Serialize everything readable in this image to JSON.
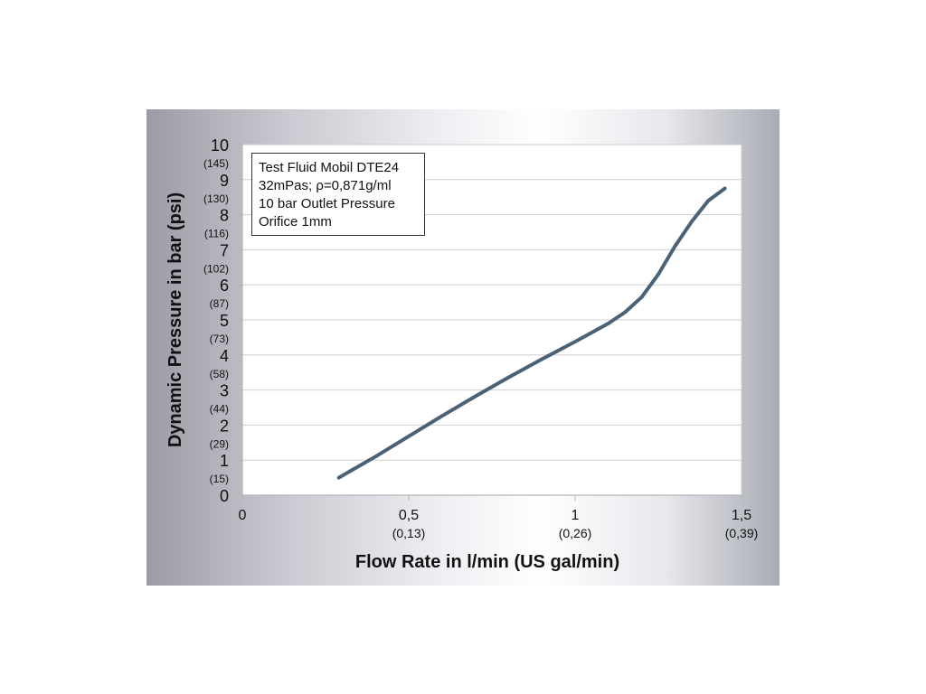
{
  "chart_data": {
    "type": "line",
    "title": "",
    "xlabel": "Flow Rate in l/min (US gal/min)",
    "ylabel": "Dynamic Pressure in bar (psi)",
    "xlim": [
      0,
      1.5
    ],
    "ylim": [
      0,
      10
    ],
    "grid": "horizontal",
    "x_ticks": [
      {
        "value": 0,
        "label": "0",
        "sub": ""
      },
      {
        "value": 0.5,
        "label": "0,5",
        "sub": "(0,13)"
      },
      {
        "value": 1,
        "label": "1",
        "sub": "(0,26)"
      },
      {
        "value": 1.5,
        "label": "1,5",
        "sub": "(0,39)"
      }
    ],
    "y_ticks": [
      {
        "value": 0,
        "label": "0",
        "sub": ""
      },
      {
        "value": 1,
        "label": "1",
        "sub": "(15)"
      },
      {
        "value": 2,
        "label": "2",
        "sub": "(29)"
      },
      {
        "value": 3,
        "label": "3",
        "sub": "(44)"
      },
      {
        "value": 4,
        "label": "4",
        "sub": "(58)"
      },
      {
        "value": 5,
        "label": "5",
        "sub": "(73)"
      },
      {
        "value": 6,
        "label": "6",
        "sub": "(87)"
      },
      {
        "value": 7,
        "label": "7",
        "sub": "(102)"
      },
      {
        "value": 8,
        "label": "8",
        "sub": "(116)"
      },
      {
        "value": 9,
        "label": "9",
        "sub": "(130)"
      },
      {
        "value": 10,
        "label": "10",
        "sub": "(145)"
      }
    ],
    "series": [
      {
        "color": "#4a6176",
        "points": [
          [
            0.29,
            0.5
          ],
          [
            0.4,
            1.1
          ],
          [
            0.5,
            1.68
          ],
          [
            0.6,
            2.26
          ],
          [
            0.7,
            2.82
          ],
          [
            0.8,
            3.36
          ],
          [
            0.9,
            3.88
          ],
          [
            1.0,
            4.38
          ],
          [
            1.1,
            4.9
          ],
          [
            1.15,
            5.22
          ],
          [
            1.2,
            5.65
          ],
          [
            1.25,
            6.3
          ],
          [
            1.3,
            7.1
          ],
          [
            1.35,
            7.8
          ],
          [
            1.4,
            8.4
          ],
          [
            1.45,
            8.75
          ]
        ]
      }
    ],
    "annotation": {
      "lines": [
        "Test Fluid Mobil DTE24",
        "32mPas; ρ=0,871g/ml",
        "10 bar Outlet Pressure",
        "Orifice 1mm"
      ]
    }
  }
}
